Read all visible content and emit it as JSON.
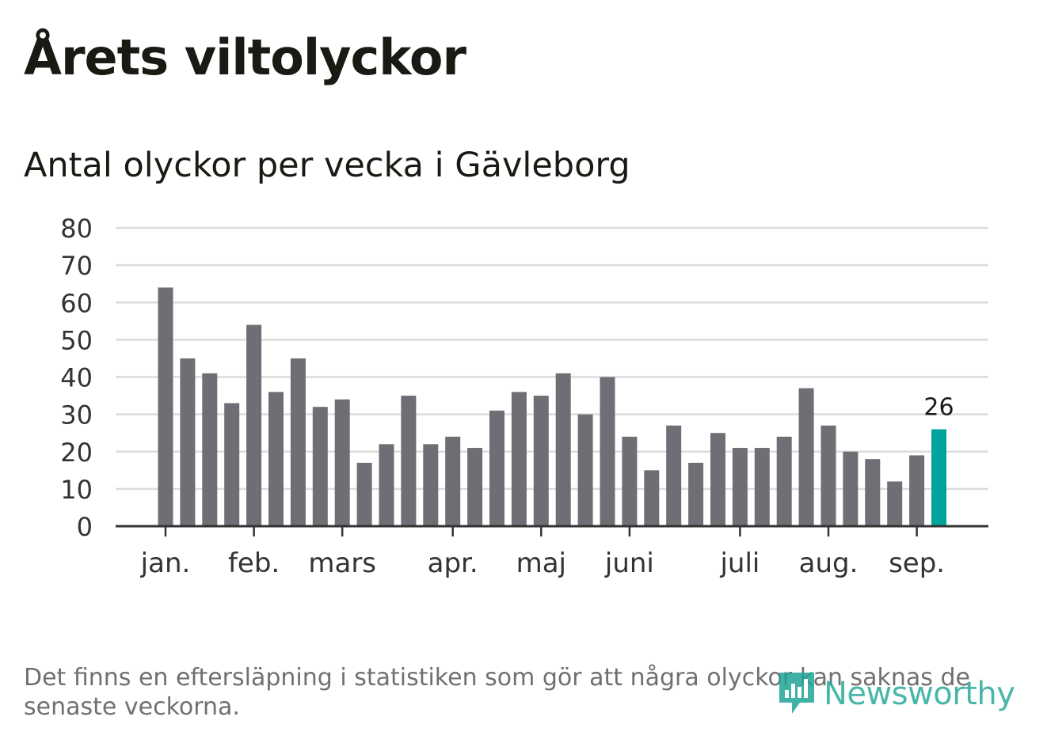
{
  "header": {
    "title": "Årets viltolyckor",
    "subtitle": "Antal olyckor per vecka i Gävleborg"
  },
  "footer": {
    "note": "Det finns en eftersläpning i statistiken som gör att några olyckor kan saknas de senaste veckorna.",
    "brand": "Newsworthy",
    "brand_icon": "bar-chart-speech-bubble-icon"
  },
  "colors": {
    "bar": "#6f6e74",
    "highlight": "#00a49a",
    "grid": "#dcdcdc",
    "axis": "#333333",
    "text": "#333333"
  },
  "chart_data": {
    "type": "bar",
    "title": "Antal olyckor per vecka i Gävleborg",
    "xlabel": "",
    "ylabel": "",
    "ylim": [
      0,
      80
    ],
    "yticks": [
      "0",
      "10",
      "20",
      "30",
      "40",
      "50",
      "60",
      "70",
      "80"
    ],
    "grid": true,
    "month_labels": [
      {
        "label": "jan.",
        "week_index": 0
      },
      {
        "label": "feb.",
        "week_index": 4
      },
      {
        "label": "mars",
        "week_index": 8
      },
      {
        "label": "apr.",
        "week_index": 13
      },
      {
        "label": "maj",
        "week_index": 17
      },
      {
        "label": "juni",
        "week_index": 21
      },
      {
        "label": "juli",
        "week_index": 26
      },
      {
        "label": "aug.",
        "week_index": 30
      },
      {
        "label": "sep.",
        "week_index": 34
      }
    ],
    "values": [
      64,
      45,
      41,
      33,
      54,
      36,
      45,
      32,
      34,
      17,
      22,
      35,
      22,
      24,
      21,
      31,
      36,
      35,
      41,
      30,
      40,
      24,
      15,
      27,
      17,
      25,
      21,
      21,
      24,
      37,
      27,
      20,
      18,
      12,
      19,
      26
    ],
    "highlight_index": 35,
    "highlight_label": "26"
  }
}
